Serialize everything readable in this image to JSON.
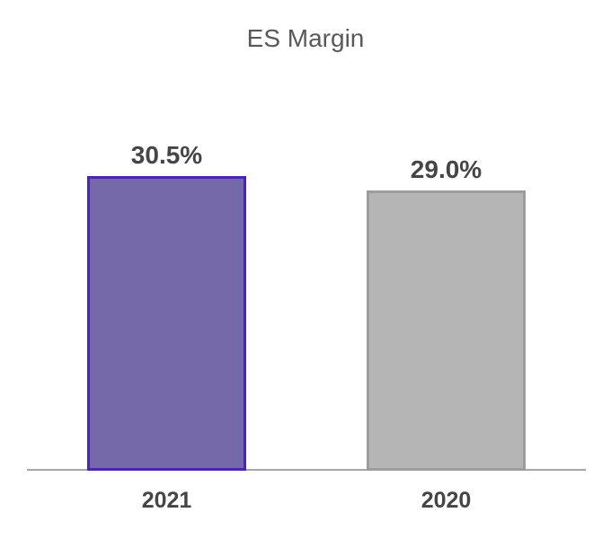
{
  "chart_data": {
    "type": "bar",
    "title": "ES Margin",
    "xlabel": "",
    "ylabel": "",
    "categories": [
      "2021",
      "2020"
    ],
    "values": [
      30.5,
      29.0
    ],
    "value_labels": [
      "30.5%",
      "29.0%"
    ],
    "series": [
      {
        "name": "ES Margin",
        "values": [
          30.5,
          29.0
        ]
      }
    ],
    "ylim": [
      0,
      30.5
    ],
    "grid": false,
    "legend": "none",
    "y_axis_visible": false,
    "x_axis_visible": true,
    "bar_colors": [
      {
        "fill": "#7569AA",
        "border": "#4C24B0"
      },
      {
        "fill": "#B5B5B5",
        "border": "#9C9C9C"
      }
    ]
  },
  "colors": {
    "background": "#FFFFFF",
    "title_text": "#595959",
    "value_label_text": "#454545",
    "category_label_text": "#454545",
    "axis_line": "#A6A6A6"
  }
}
